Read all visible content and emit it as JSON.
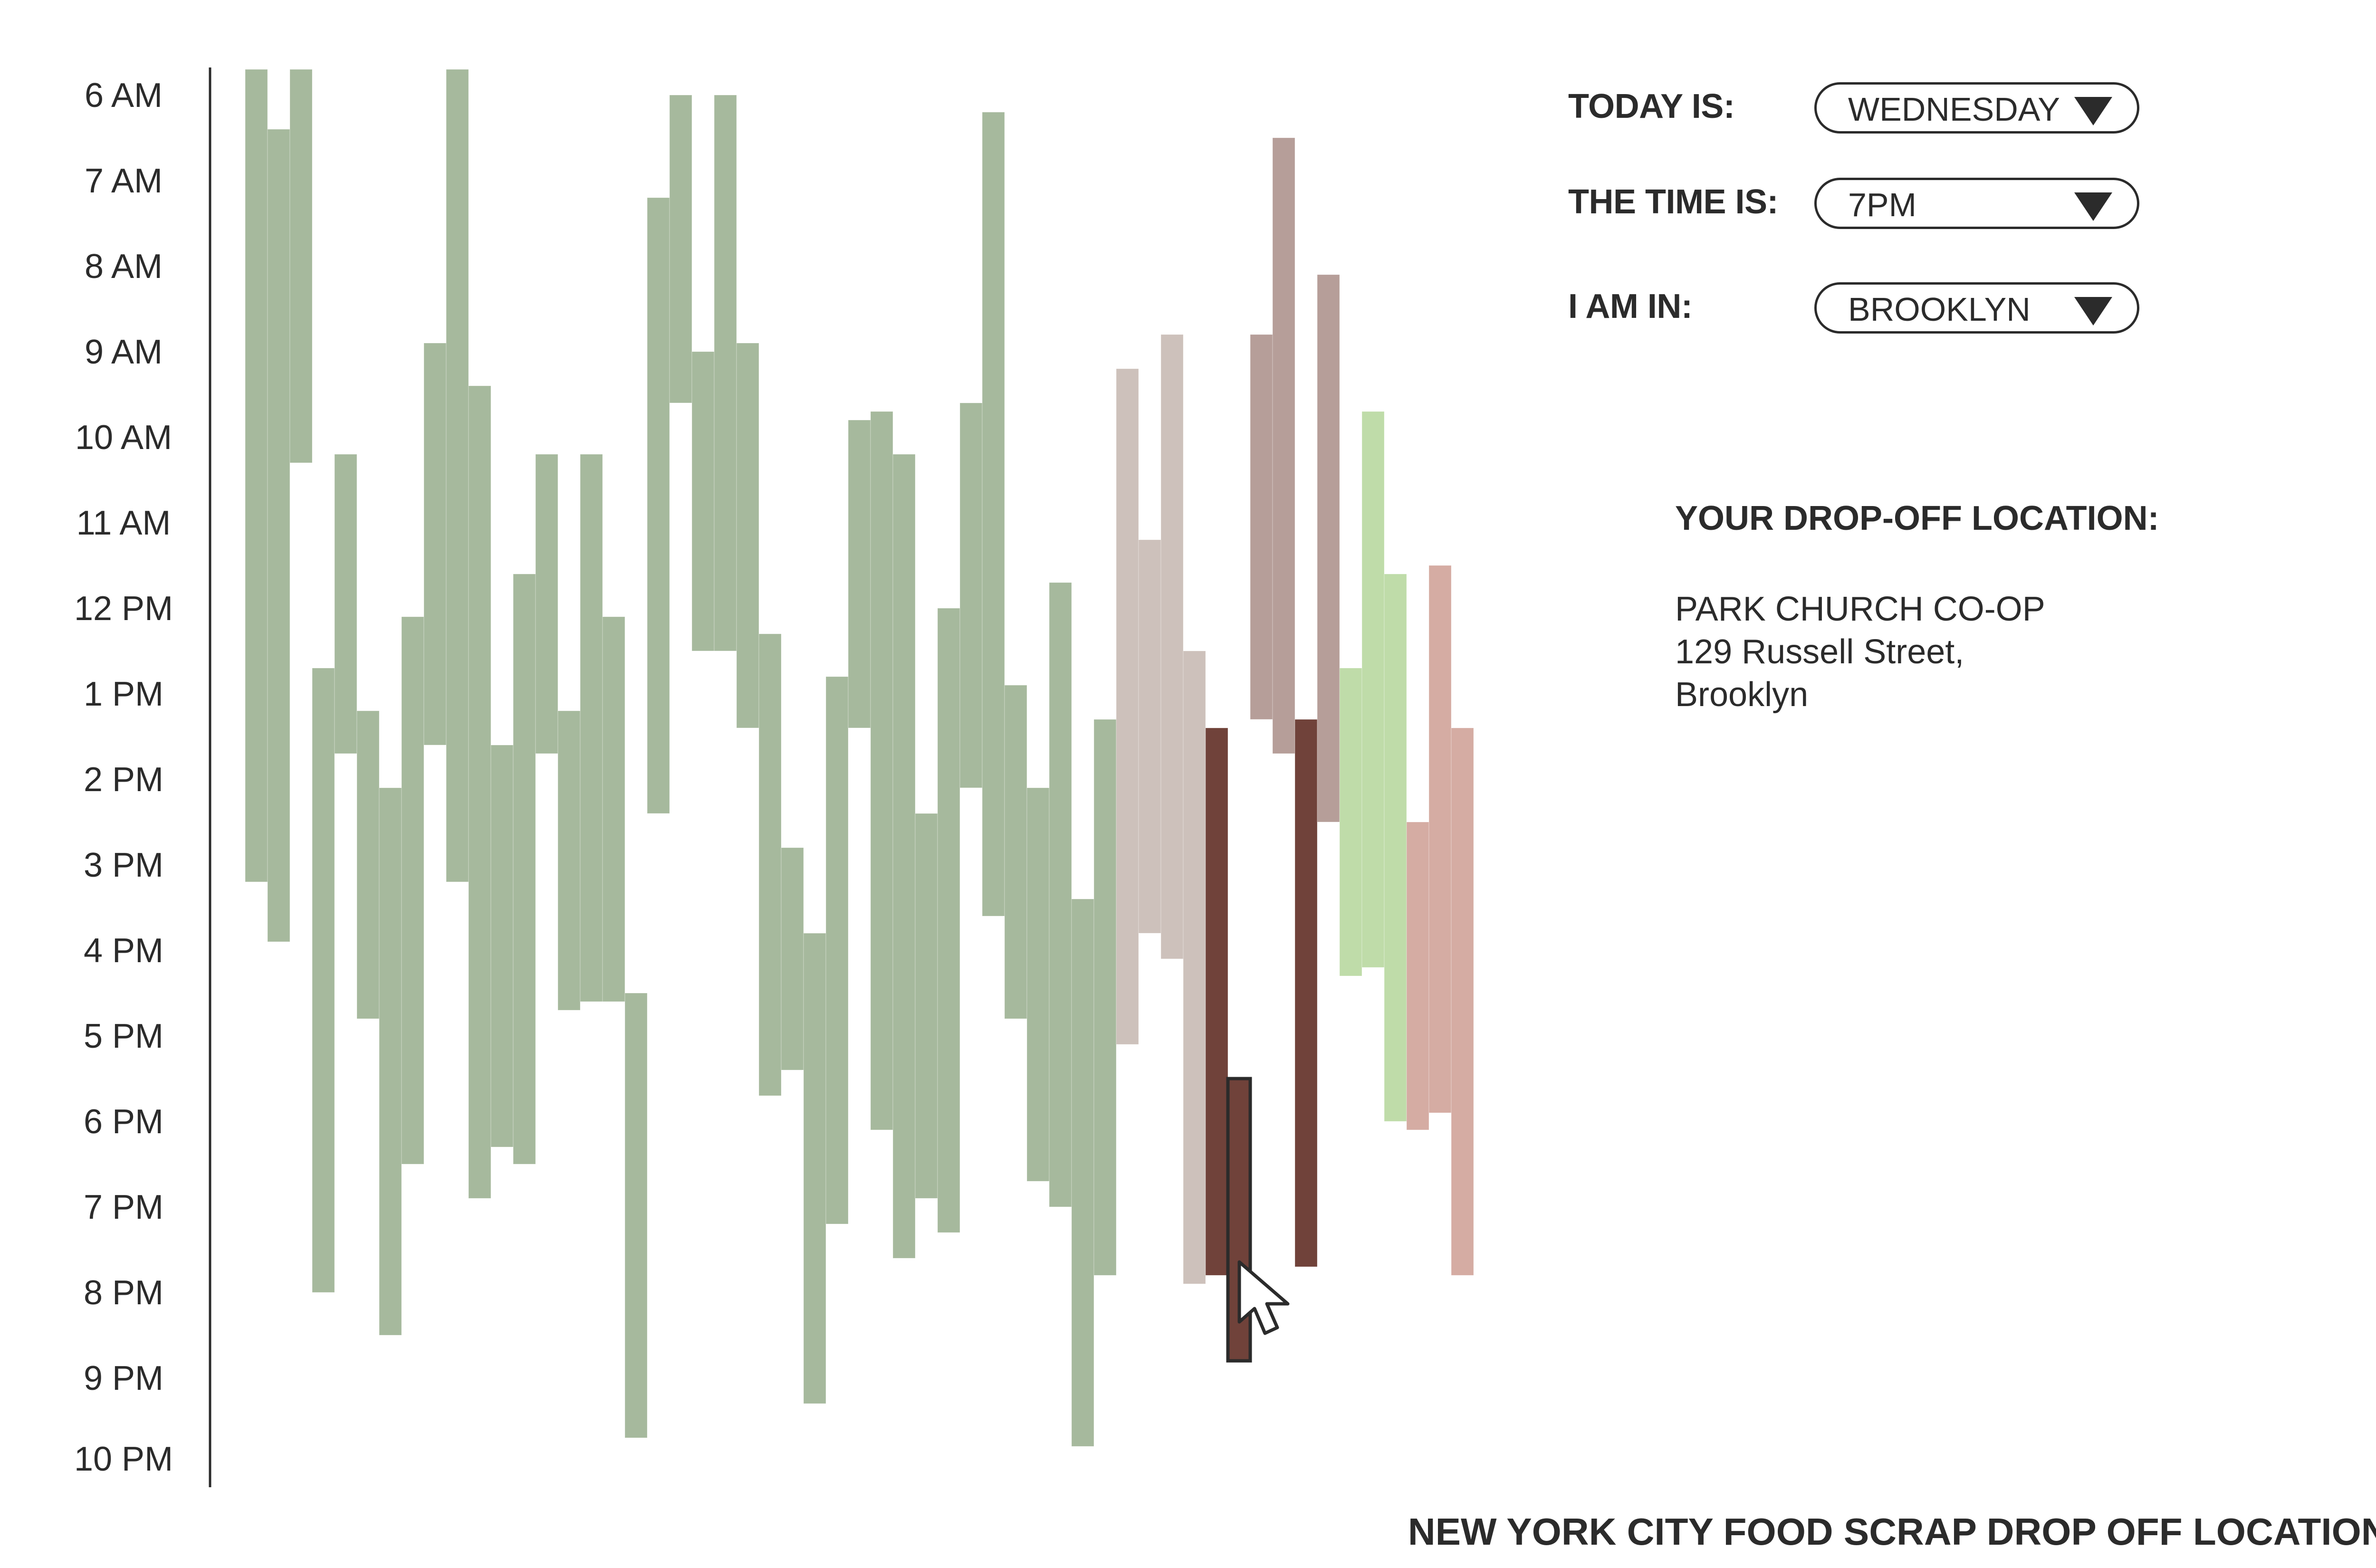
{
  "controls": {
    "today_label": "TODAY IS:",
    "today_value": "WEDNESDAY",
    "time_label": "THE TIME IS:",
    "time_value": "7PM",
    "borough_label": "I AM IN:",
    "borough_value": "BROOKLYN"
  },
  "location": {
    "heading": "YOUR DROP-OFF LOCATION:",
    "name": "PARK CHURCH CO-OP",
    "address_line": "129 Russell Street,",
    "borough": "Brooklyn"
  },
  "footer": {
    "title": "NEW YORK CITY FOOD SCRAP DROP OFF LOCATIONS"
  },
  "cursor": {
    "icon": "pointer-arrow-icon"
  },
  "chart_data": {
    "type": "bar",
    "orientation": "floating-range",
    "x_axis": "drop-off locations",
    "y_axis": "time of day",
    "y_ticks": [
      "6 AM",
      "7 AM",
      "8 AM",
      "9 AM",
      "10 AM",
      "11 AM",
      "12 PM",
      "1 PM",
      "2 PM",
      "3 PM",
      "4 PM",
      "5 PM",
      "6 PM",
      "7 PM",
      "8 PM",
      "9 PM",
      "10 PM"
    ],
    "ylim_hours": [
      6,
      22.3
    ],
    "colors": {
      "green": "#a3b79a",
      "light_taupe": "#cbbfb9",
      "taupe": "#b49b96",
      "dark_brown": "#70423a",
      "light_green": "#bddba6",
      "pink": "#d4a9a0",
      "outline": "#2b2b2b"
    },
    "bars": [
      {
        "start": 5.7,
        "end": 15.2,
        "color": "green"
      },
      {
        "start": 6.4,
        "end": 15.9,
        "color": "green"
      },
      {
        "start": 5.7,
        "end": 10.3,
        "color": "green"
      },
      {
        "start": 12.7,
        "end": 20.0,
        "color": "green"
      },
      {
        "start": 10.2,
        "end": 13.7,
        "color": "green"
      },
      {
        "start": 13.2,
        "end": 16.8,
        "color": "green"
      },
      {
        "start": 14.1,
        "end": 20.5,
        "color": "green"
      },
      {
        "start": 12.1,
        "end": 18.5,
        "color": "green"
      },
      {
        "start": 8.9,
        "end": 13.6,
        "color": "green"
      },
      {
        "start": 5.7,
        "end": 15.2,
        "color": "green"
      },
      {
        "start": 9.4,
        "end": 18.9,
        "color": "green"
      },
      {
        "start": 13.6,
        "end": 18.3,
        "color": "green"
      },
      {
        "start": 11.6,
        "end": 18.5,
        "color": "green"
      },
      {
        "start": 10.2,
        "end": 13.7,
        "color": "green"
      },
      {
        "start": 13.2,
        "end": 16.7,
        "color": "green"
      },
      {
        "start": 10.2,
        "end": 16.6,
        "color": "green"
      },
      {
        "start": 12.1,
        "end": 16.6,
        "color": "green"
      },
      {
        "start": 16.5,
        "end": 21.7,
        "color": "green"
      },
      {
        "start": 7.2,
        "end": 14.4,
        "color": "green"
      },
      {
        "start": 6.0,
        "end": 9.6,
        "color": "green"
      },
      {
        "start": 9.0,
        "end": 12.5,
        "color": "green"
      },
      {
        "start": 6.0,
        "end": 12.5,
        "color": "green"
      },
      {
        "start": 8.9,
        "end": 13.4,
        "color": "green"
      },
      {
        "start": 12.3,
        "end": 17.7,
        "color": "green"
      },
      {
        "start": 14.8,
        "end": 17.4,
        "color": "green"
      },
      {
        "start": 15.8,
        "end": 21.3,
        "color": "green"
      },
      {
        "start": 12.8,
        "end": 19.2,
        "color": "green"
      },
      {
        "start": 9.8,
        "end": 13.4,
        "color": "green"
      },
      {
        "start": 9.7,
        "end": 18.1,
        "color": "green"
      },
      {
        "start": 10.2,
        "end": 19.6,
        "color": "green"
      },
      {
        "start": 14.4,
        "end": 18.9,
        "color": "green"
      },
      {
        "start": 12.0,
        "end": 19.3,
        "color": "green"
      },
      {
        "start": 9.6,
        "end": 14.1,
        "color": "green"
      },
      {
        "start": 6.2,
        "end": 15.6,
        "color": "green"
      },
      {
        "start": 12.9,
        "end": 16.8,
        "color": "green"
      },
      {
        "start": 14.1,
        "end": 18.7,
        "color": "green"
      },
      {
        "start": 11.7,
        "end": 19.0,
        "color": "green"
      },
      {
        "start": 15.4,
        "end": 21.8,
        "color": "green"
      },
      {
        "start": 13.3,
        "end": 19.8,
        "color": "green"
      },
      {
        "start": 9.2,
        "end": 17.1,
        "color": "light_taupe"
      },
      {
        "start": 11.2,
        "end": 15.8,
        "color": "light_taupe"
      },
      {
        "start": 8.8,
        "end": 16.1,
        "color": "light_taupe"
      },
      {
        "start": 12.5,
        "end": 19.9,
        "color": "light_taupe"
      },
      {
        "start": 13.4,
        "end": 19.8,
        "color": "dark_brown"
      },
      {
        "start": 17.5,
        "end": 20.8,
        "color": "dark_brown",
        "selected": true
      },
      {
        "start": 8.8,
        "end": 13.3,
        "color": "taupe"
      },
      {
        "start": 6.5,
        "end": 13.7,
        "color": "taupe"
      },
      {
        "start": 13.3,
        "end": 19.7,
        "color": "dark_brown"
      },
      {
        "start": 8.1,
        "end": 14.5,
        "color": "taupe"
      },
      {
        "start": 12.7,
        "end": 16.3,
        "color": "light_green"
      },
      {
        "start": 9.7,
        "end": 16.2,
        "color": "light_green"
      },
      {
        "start": 11.6,
        "end": 18.0,
        "color": "light_green"
      },
      {
        "start": 14.5,
        "end": 18.1,
        "color": "pink"
      },
      {
        "start": 11.5,
        "end": 17.9,
        "color": "pink"
      },
      {
        "start": 13.4,
        "end": 19.8,
        "color": "pink"
      }
    ]
  }
}
